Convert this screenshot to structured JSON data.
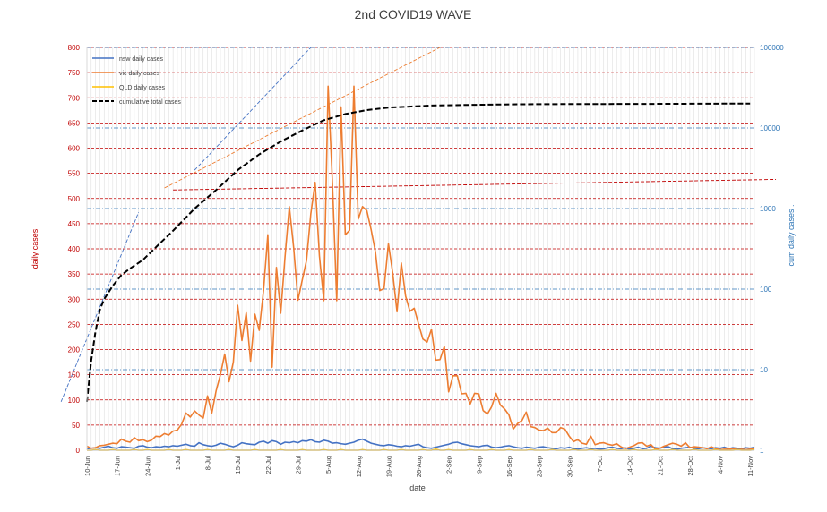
{
  "chart_data": {
    "type": "line",
    "title": "2nd COVID19 WAVE",
    "xlabel": "date",
    "ylabel": "daily cases",
    "y2label": "cum daily cases .",
    "ylim": [
      0,
      800
    ],
    "yticks": [
      0,
      50,
      100,
      150,
      200,
      250,
      300,
      350,
      400,
      450,
      500,
      550,
      600,
      650,
      700,
      750,
      800
    ],
    "y2_scale": "log",
    "y2lim": [
      1,
      100000
    ],
    "y2ticks": [
      1,
      10,
      100,
      1000,
      10000,
      100000
    ],
    "x_tick_labels": [
      "10-Jun",
      "17-Jun",
      "24-Jun",
      "1-Jul",
      "8-Jul",
      "15-Jul",
      "22-Jul",
      "29-Jul",
      "5-Aug",
      "12-Aug",
      "19-Aug",
      "26-Aug",
      "2-Sep",
      "9-Sep",
      "16-Sep",
      "23-Sep",
      "30-Sep",
      "7-Oct",
      "14-Oct",
      "21-Oct",
      "28-Oct",
      "4-Nov",
      "11-Nov"
    ],
    "x_start": "10-Jun",
    "x_days": 155,
    "legend_position": "top-left",
    "series": [
      {
        "name": "nsw daily cases",
        "color": "#4472c4",
        "axis": "left",
        "values": [
          3,
          4,
          5,
          4,
          6,
          8,
          5,
          4,
          7,
          6,
          5,
          4,
          8,
          9,
          6,
          5,
          7,
          6,
          8,
          7,
          9,
          8,
          10,
          12,
          9,
          8,
          15,
          11,
          9,
          8,
          10,
          14,
          12,
          9,
          7,
          10,
          15,
          13,
          12,
          11,
          16,
          18,
          14,
          19,
          17,
          12,
          16,
          15,
          17,
          15,
          19,
          18,
          21,
          17,
          16,
          20,
          18,
          14,
          15,
          13,
          12,
          14,
          16,
          20,
          22,
          18,
          14,
          12,
          10,
          9,
          11,
          10,
          8,
          7,
          9,
          8,
          10,
          12,
          7,
          5,
          4,
          6,
          8,
          10,
          12,
          15,
          16,
          13,
          11,
          9,
          8,
          7,
          9,
          10,
          6,
          5,
          6,
          8,
          9,
          7,
          5,
          4,
          6,
          5,
          4,
          6,
          7,
          5,
          4,
          3,
          5,
          4,
          6,
          3,
          2,
          4,
          5,
          3,
          4,
          2,
          3,
          5,
          6,
          4,
          3,
          5,
          2,
          4,
          6,
          3,
          4,
          8,
          5,
          4,
          6,
          7,
          3,
          2,
          4,
          5,
          6,
          4,
          3,
          5,
          4,
          3,
          5,
          4,
          6,
          3,
          5,
          4,
          3,
          5,
          4,
          6
        ]
      },
      {
        "name": "vic daily cases",
        "color": "#ed7d31",
        "axis": "left",
        "values": [
          8,
          4,
          5,
          9,
          10,
          12,
          14,
          13,
          22,
          18,
          16,
          25,
          19,
          21,
          17,
          20,
          28,
          27,
          33,
          30,
          38,
          40,
          52,
          74,
          66,
          78,
          70,
          64,
          108,
          74,
          118,
          150,
          191,
          136,
          175,
          288,
          218,
          273,
          177,
          270,
          238,
          317,
          428,
          165,
          363,
          272,
          384,
          484,
          403,
          298,
          338,
          377,
          470,
          532,
          386,
          297,
          723,
          532,
          297,
          682,
          428,
          437,
          723,
          459,
          484,
          476,
          438,
          394,
          317,
          321,
          410,
          352,
          275,
          372,
          306,
          276,
          282,
          251,
          221,
          215,
          240,
          179,
          180,
          206,
          116,
          148,
          148,
          112,
          113,
          92,
          113,
          112,
          79,
          72,
          87,
          113,
          90,
          82,
          70,
          42,
          53,
          59,
          76,
          47,
          45,
          40,
          39,
          44,
          35,
          35,
          45,
          42,
          28,
          17,
          21,
          14,
          12,
          28,
          11,
          14,
          15,
          12,
          10,
          13,
          7,
          3,
          6,
          9,
          14,
          15,
          8,
          11,
          2,
          4,
          8,
          11,
          14,
          12,
          8,
          15,
          5,
          7,
          6,
          5,
          3,
          7,
          3,
          1,
          2,
          2,
          3,
          1,
          2,
          1,
          2,
          3
        ]
      },
      {
        "name": "QLD daily cases",
        "color": "#ffc000",
        "axis": "left",
        "values": [
          0,
          0,
          1,
          0,
          0,
          0,
          1,
          0,
          0,
          0,
          0,
          1,
          0,
          0,
          1,
          0,
          0,
          0,
          0,
          1,
          0,
          0,
          0,
          1,
          0,
          0,
          0,
          0,
          1,
          0,
          0,
          0,
          0,
          1,
          0,
          0,
          0,
          0,
          0,
          1,
          0,
          0,
          0,
          0,
          0,
          1,
          0,
          0,
          0,
          0,
          1,
          0,
          0,
          0,
          0,
          1,
          0,
          0,
          0,
          1,
          0,
          0,
          0,
          0,
          1,
          0,
          0,
          0,
          0,
          1,
          0,
          0,
          0,
          1,
          0,
          0,
          0,
          0,
          1,
          0,
          0,
          2,
          0,
          0,
          1,
          0,
          0,
          0,
          0,
          1,
          0,
          0,
          0,
          0,
          1,
          0,
          0,
          0,
          1,
          0,
          0,
          0,
          0,
          1,
          0,
          0,
          0,
          0,
          1,
          0,
          0,
          0,
          0,
          1,
          0,
          0,
          0,
          1,
          0,
          0,
          0,
          0,
          1,
          0,
          0,
          0,
          0,
          1,
          0,
          0,
          0,
          0,
          1,
          0,
          0,
          0,
          1,
          0,
          0,
          0,
          0,
          1,
          0,
          0,
          0,
          0,
          1,
          0,
          0,
          0,
          0,
          1,
          0,
          0,
          0,
          1
        ]
      },
      {
        "name": "cumulative total cases",
        "color": "#000000",
        "axis": "right",
        "dashed": true,
        "x": [
          0,
          1,
          2,
          3,
          4,
          6,
          8,
          10,
          13,
          16,
          20,
          25,
          30,
          35,
          40,
          45,
          50,
          55,
          60,
          65,
          70,
          80,
          90,
          100,
          110,
          130,
          154
        ],
        "values": [
          4,
          13,
          30,
          55,
          75,
          110,
          150,
          180,
          230,
          330,
          530,
          1000,
          1700,
          3000,
          4700,
          6800,
          9300,
          12500,
          14900,
          16700,
          17900,
          19000,
          19400,
          19700,
          19800,
          19900,
          20100
        ]
      }
    ],
    "trendlines": [
      {
        "axis": "right",
        "color": "#4472c4",
        "x": [
          -6,
          12
        ],
        "values": [
          4,
          900
        ]
      },
      {
        "axis": "right",
        "color": "#4472c4",
        "x": [
          25,
          52
        ],
        "values": [
          3000,
          100000
        ]
      },
      {
        "axis": "right",
        "color": "#ed7d31",
        "x": [
          18,
          82
        ],
        "values": [
          1800,
          100000
        ]
      },
      {
        "axis": "right",
        "color": "#c00000",
        "x": [
          20,
          160
        ],
        "values": [
          1700,
          2300
        ]
      }
    ]
  }
}
